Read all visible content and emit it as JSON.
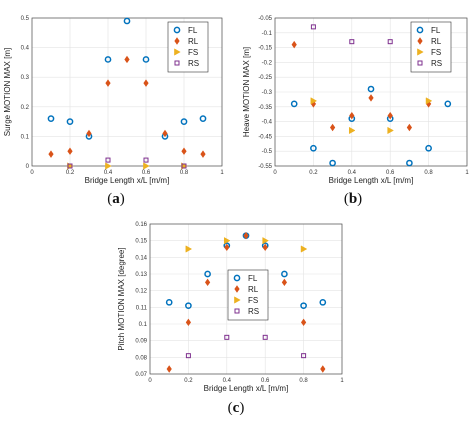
{
  "colors": {
    "FL": "#0072BD",
    "RL": "#D95319",
    "FS": "#EDB120",
    "RS": "#7E2F8E"
  },
  "chart_data": [
    {
      "type": "scatter",
      "caption": "a",
      "xlabel": "Bridge Length x/L [m/m]",
      "ylabel": "Surge MOTION MAX [m]",
      "xlim": [
        0,
        1
      ],
      "ylim": [
        0,
        0.5
      ],
      "xticks": [
        "0",
        "0.2",
        "0.4",
        "0.6",
        "0.8",
        "1"
      ],
      "yticks": [
        "0",
        "0.1",
        "0.2",
        "0.3",
        "0.4",
        "0.5"
      ],
      "legend": "top-right",
      "grid": true,
      "series": [
        {
          "name": "FL",
          "marker": "circle",
          "x": [
            0.1,
            0.2,
            0.3,
            0.4,
            0.5,
            0.6,
            0.7,
            0.8,
            0.9
          ],
          "y": [
            0.16,
            0.15,
            0.1,
            0.36,
            0.49,
            0.36,
            0.1,
            0.15,
            0.16
          ]
        },
        {
          "name": "RL",
          "marker": "diamond",
          "x": [
            0.1,
            0.2,
            0.3,
            0.4,
            0.5,
            0.6,
            0.7,
            0.8,
            0.9
          ],
          "y": [
            0.04,
            0.05,
            0.11,
            0.28,
            0.36,
            0.28,
            0.11,
            0.05,
            0.04
          ]
        },
        {
          "name": "FS",
          "marker": "triangle",
          "x": [
            0.2,
            0.4,
            0.6,
            0.8
          ],
          "y": [
            0.0,
            0.0,
            0.0,
            0.0
          ]
        },
        {
          "name": "RS",
          "marker": "square",
          "x": [
            0.2,
            0.4,
            0.6,
            0.8
          ],
          "y": [
            0.0,
            0.02,
            0.02,
            0.0
          ]
        }
      ]
    },
    {
      "type": "scatter",
      "caption": "b",
      "xlabel": "Bridge Length x/L [m/m]",
      "ylabel": "Heave MOTION MAX [m]",
      "xlim": [
        0,
        1
      ],
      "ylim": [
        -0.55,
        -0.05
      ],
      "xticks": [
        "0",
        "0.2",
        "0.4",
        "0.6",
        "0.8",
        "1"
      ],
      "yticks": [
        "-0.55",
        "-0.5",
        "-0.45",
        "-0.4",
        "-0.35",
        "-0.3",
        "-0.25",
        "-0.2",
        "-0.15",
        "-0.1",
        "-0.05"
      ],
      "legend": "top-right",
      "grid": true,
      "series": [
        {
          "name": "FL",
          "marker": "circle",
          "x": [
            0.1,
            0.2,
            0.3,
            0.4,
            0.5,
            0.6,
            0.7,
            0.8,
            0.9
          ],
          "y": [
            -0.34,
            -0.49,
            -0.54,
            -0.39,
            -0.29,
            -0.39,
            -0.54,
            -0.49,
            -0.34
          ]
        },
        {
          "name": "RL",
          "marker": "diamond",
          "x": [
            0.1,
            0.2,
            0.3,
            0.4,
            0.5,
            0.6,
            0.7,
            0.8,
            0.9
          ],
          "y": [
            -0.14,
            -0.34,
            -0.42,
            -0.38,
            -0.32,
            -0.38,
            -0.42,
            -0.34,
            -0.14
          ]
        },
        {
          "name": "FS",
          "marker": "triangle",
          "x": [
            0.2,
            0.4,
            0.6,
            0.8
          ],
          "y": [
            -0.33,
            -0.43,
            -0.43,
            -0.33
          ]
        },
        {
          "name": "RS",
          "marker": "square",
          "x": [
            0.2,
            0.4,
            0.6,
            0.8
          ],
          "y": [
            -0.08,
            -0.13,
            -0.13,
            -0.08
          ]
        }
      ]
    },
    {
      "type": "scatter",
      "caption": "c",
      "xlabel": "Bridge Length x/L [m/m]",
      "ylabel": "Pitch MOTION MAX [degree]",
      "xlim": [
        0,
        1
      ],
      "ylim": [
        0.07,
        0.16
      ],
      "xticks": [
        "0",
        "0.2",
        "0.4",
        "0.6",
        "0.8",
        "1"
      ],
      "yticks": [
        "0.07",
        "0.08",
        "0.09",
        "0.1",
        "0.11",
        "0.12",
        "0.13",
        "0.14",
        "0.15",
        "0.16"
      ],
      "legend": "center",
      "grid": true,
      "series": [
        {
          "name": "FL",
          "marker": "circle",
          "x": [
            0.1,
            0.2,
            0.3,
            0.4,
            0.5,
            0.6,
            0.7,
            0.8,
            0.9
          ],
          "y": [
            0.113,
            0.111,
            0.13,
            0.147,
            0.153,
            0.147,
            0.13,
            0.111,
            0.113
          ]
        },
        {
          "name": "RL",
          "marker": "diamond",
          "x": [
            0.1,
            0.2,
            0.3,
            0.4,
            0.5,
            0.6,
            0.7,
            0.8,
            0.9
          ],
          "y": [
            0.073,
            0.101,
            0.125,
            0.146,
            0.153,
            0.146,
            0.125,
            0.101,
            0.073
          ]
        },
        {
          "name": "FS",
          "marker": "triangle",
          "x": [
            0.2,
            0.4,
            0.6,
            0.8
          ],
          "y": [
            0.145,
            0.15,
            0.15,
            0.145
          ]
        },
        {
          "name": "RS",
          "marker": "square",
          "x": [
            0.2,
            0.4,
            0.6,
            0.8
          ],
          "y": [
            0.081,
            0.092,
            0.092,
            0.081
          ]
        }
      ]
    }
  ]
}
